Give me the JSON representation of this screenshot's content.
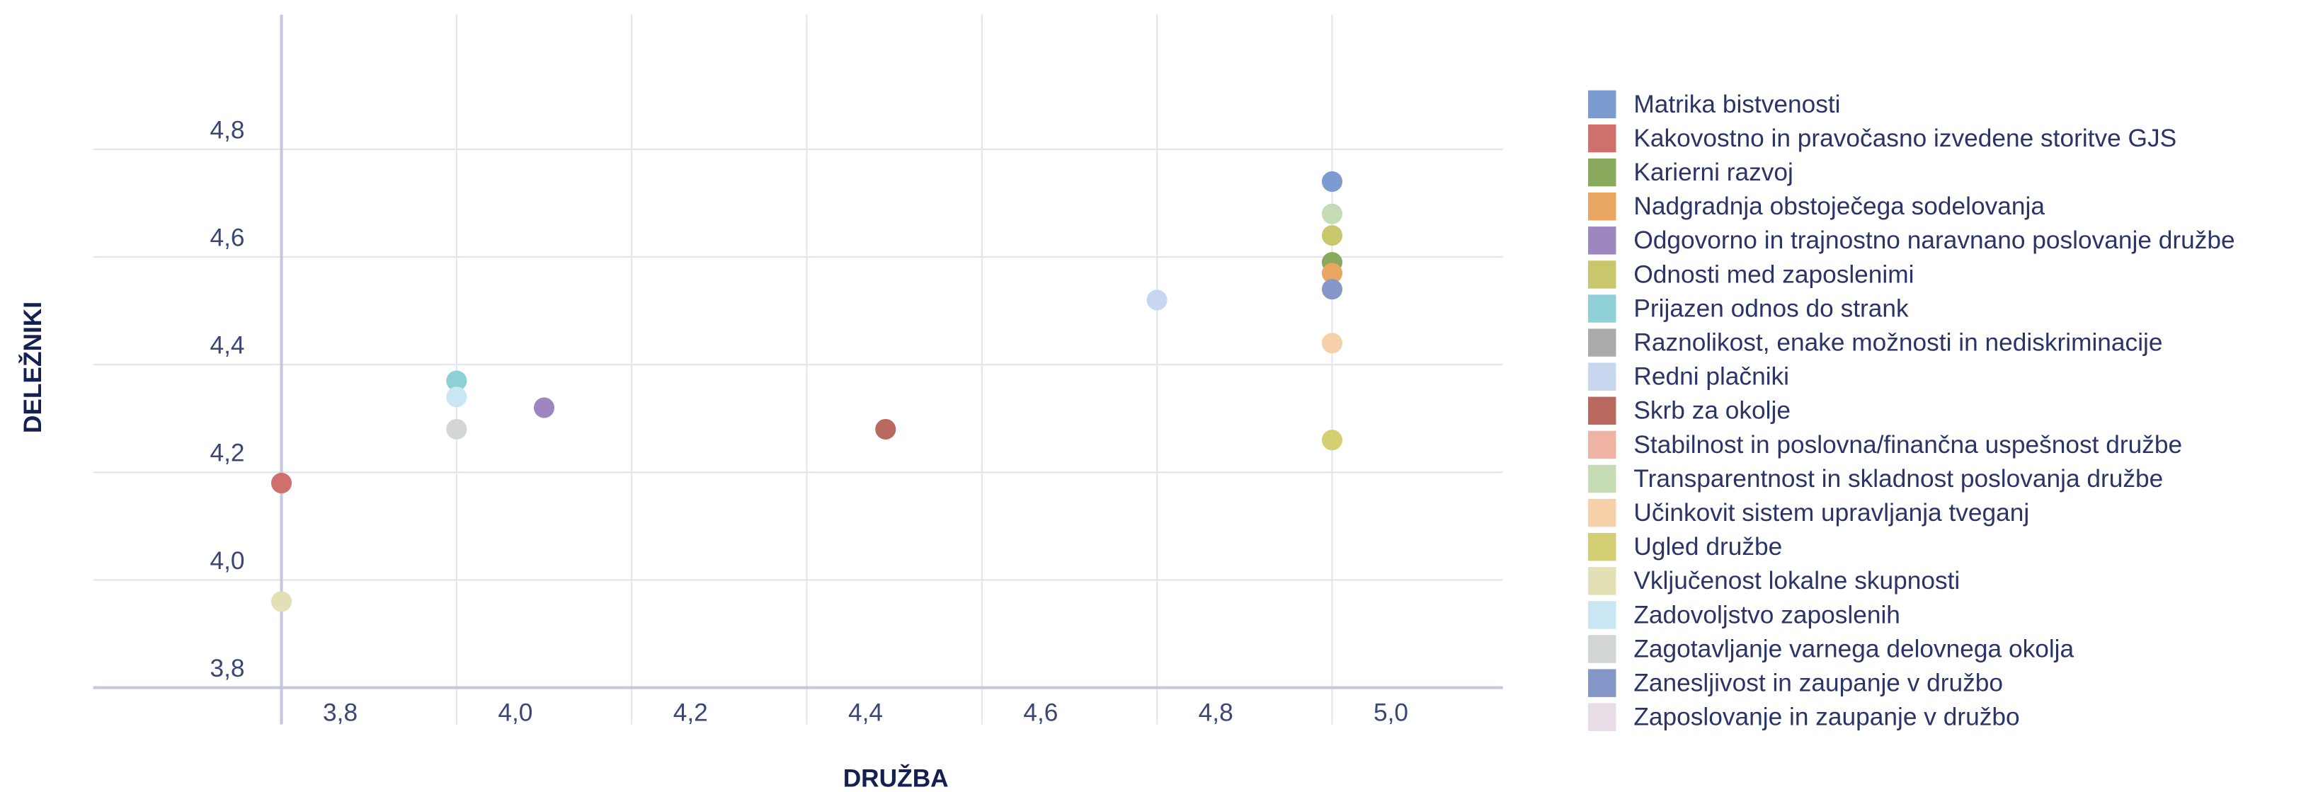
{
  "chart_data": {
    "type": "scatter",
    "x_label": "DRUŽBA",
    "y_label": "DELEŽNIKI",
    "xlim": [
      3.585,
      5.195
    ],
    "ylim": [
      3.8,
      5.05
    ],
    "xticks": [
      {
        "value": 3.8,
        "label": "3,8"
      },
      {
        "value": 4.0,
        "label": "4,0"
      },
      {
        "value": 4.2,
        "label": "4,2"
      },
      {
        "value": 4.4,
        "label": "4,4"
      },
      {
        "value": 4.6,
        "label": "4,6"
      },
      {
        "value": 4.8,
        "label": "4,8"
      },
      {
        "value": 5.0,
        "label": "5,0"
      }
    ],
    "yticks": [
      {
        "value": 3.8,
        "label": "3,8"
      },
      {
        "value": 4.0,
        "label": "4,0"
      },
      {
        "value": 4.2,
        "label": "4,2"
      },
      {
        "value": 4.4,
        "label": "4,4"
      },
      {
        "value": 4.6,
        "label": "4,6"
      },
      {
        "value": 4.8,
        "label": "4,8"
      }
    ],
    "grid": true,
    "legend": "right",
    "series": [
      {
        "name": "Matrika bistvenosti",
        "color": "#7b9bd1",
        "x": [
          5.0
        ],
        "values": [
          4.74
        ]
      },
      {
        "name": "Kakovostno in pravočasno izvedene storitve GJS",
        "color": "#d0706c",
        "x": [
          3.8
        ],
        "values": [
          4.18
        ]
      },
      {
        "name": "Karierni razvoj",
        "color": "#89aa5c",
        "x": [
          5.0
        ],
        "values": [
          4.59
        ]
      },
      {
        "name": "Nadgradnja obstoječega sodelovanja",
        "color": "#e8a660",
        "x": [
          5.0
        ],
        "values": [
          4.57
        ]
      },
      {
        "name": "Odgovorno in trajnostno naravnano poslovanje družbe",
        "color": "#9e86c0",
        "x": [
          4.1
        ],
        "values": [
          4.32
        ]
      },
      {
        "name": "Odnosti med zaposlenimi",
        "color": "#c9c76b",
        "x": [
          5.0
        ],
        "values": [
          4.64
        ]
      },
      {
        "name": "Prijazen odnos do strank",
        "color": "#8fd0d6",
        "x": [
          4.0
        ],
        "values": [
          4.37
        ]
      },
      {
        "name": "Raznolikost, enake možnosti in nediskriminacije",
        "color": "#aaaaad",
        "x": [
          null
        ],
        "values": [
          null
        ]
      },
      {
        "name": "Redni plačniki",
        "color": "#c8d6ef",
        "x": [
          4.8
        ],
        "values": [
          4.52
        ]
      },
      {
        "name": "Skrb za okolje",
        "color": "#b9695d",
        "x": [
          4.49
        ],
        "values": [
          4.28
        ]
      },
      {
        "name": "Stabilnost in poslovna/finančna uspešnost družbe",
        "color": "#efb3a3",
        "x": [
          null
        ],
        "values": [
          null
        ]
      },
      {
        "name": "Transparentnost in skladnost poslovanja družbe",
        "color": "#c5dbb4",
        "x": [
          5.0
        ],
        "values": [
          4.68
        ]
      },
      {
        "name": "Učinkovit sistem upravljanja tveganj",
        "color": "#f5d0a8",
        "x": [
          5.0
        ],
        "values": [
          4.44
        ]
      },
      {
        "name": "Ugled družbe",
        "color": "#d4cf72",
        "x": [
          5.0
        ],
        "values": [
          4.26
        ]
      },
      {
        "name": "Vključenost lokalne skupnosti",
        "color": "#e2e0b4",
        "x": [
          3.8
        ],
        "values": [
          3.96
        ]
      },
      {
        "name": "Zadovoljstvo zaposlenih",
        "color": "#c9e6f2",
        "x": [
          4.0
        ],
        "values": [
          4.34
        ]
      },
      {
        "name": "Zagotavljanje varnega delovnega okolja",
        "color": "#d2d6d6",
        "x": [
          4.0
        ],
        "values": [
          4.28
        ]
      },
      {
        "name": "Zanesljivost in zaupanje v družbo",
        "color": "#8597c8",
        "x": [
          5.0
        ],
        "values": [
          4.54
        ]
      },
      {
        "name": "Zaposlovanje in zaupanje v družbo",
        "color": "#e8dde6",
        "x": [
          null
        ],
        "values": [
          null
        ]
      }
    ]
  }
}
